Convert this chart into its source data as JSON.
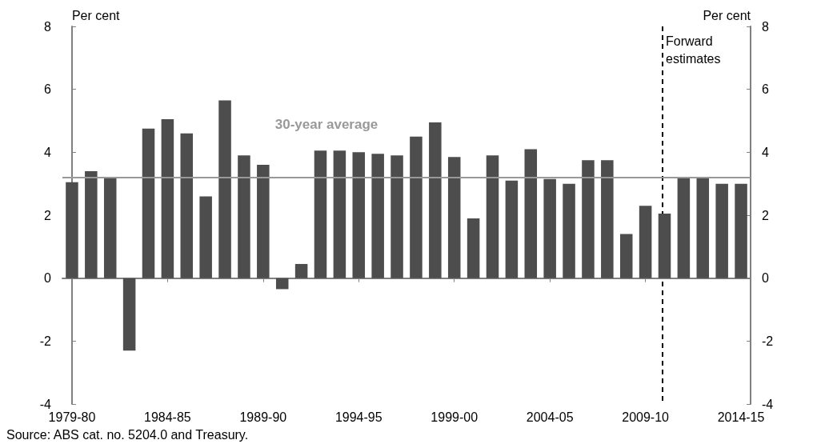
{
  "chart_data": {
    "type": "bar",
    "ylabel": "Per cent",
    "y2label": "Per cent",
    "categories": [
      "1979-80",
      null,
      null,
      null,
      null,
      "1984-85",
      null,
      null,
      null,
      null,
      "1989-90",
      null,
      null,
      null,
      null,
      "1994-95",
      null,
      null,
      null,
      null,
      "1999-00",
      null,
      null,
      null,
      null,
      "2004-05",
      null,
      null,
      null,
      null,
      "2009-10",
      null,
      null,
      null,
      null,
      "2014-15"
    ],
    "values": [
      3.05,
      3.4,
      3.2,
      -2.3,
      4.75,
      5.05,
      4.6,
      2.6,
      5.65,
      3.9,
      3.6,
      -0.35,
      0.45,
      4.05,
      4.05,
      4.0,
      3.95,
      3.9,
      4.5,
      4.95,
      3.85,
      1.9,
      3.9,
      3.1,
      4.1,
      3.15,
      3.0,
      3.75,
      3.75,
      1.4,
      2.3,
      2.05,
      3.2,
      3.2,
      3.0,
      3.0
    ],
    "color": "#4d4d4d",
    "ylim": [
      -4,
      8
    ],
    "yticks": [
      -4,
      -2,
      0,
      2,
      4,
      6,
      8
    ],
    "y2lim": [
      -4,
      8
    ],
    "y2ticks": [
      -4,
      -2,
      0,
      2,
      4,
      6,
      8
    ],
    "ref_lines": [
      {
        "axis": "y",
        "value": 3.2,
        "label": "30-year average",
        "color": "#999999",
        "line_style": "solid"
      }
    ],
    "annotations": [
      "Forward estimates",
      "Source: ABS cat. no. 5204.0 and Treasury."
    ],
    "grid": false
  }
}
